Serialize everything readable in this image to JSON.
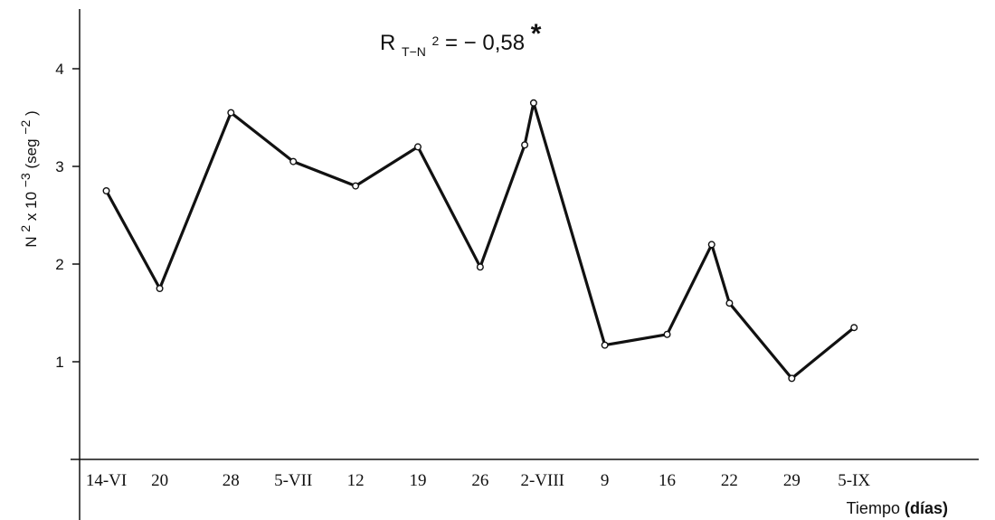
{
  "chart_data": {
    "type": "line",
    "title": "",
    "annotation": {
      "prefix": "R",
      "subscript": "T−N",
      "sup": "2",
      "value": " = − 0,58",
      "mark": "*"
    },
    "ylabel": {
      "base": "N",
      "sup1": "2",
      "mid": " x 10",
      "sup2": "−3",
      "paren_open": "(seg",
      "sup3": "−2",
      "paren_close": " )"
    },
    "xlabel": "Tiempo",
    "xlabel_unit": "(días)",
    "ylim": [
      0,
      4.5
    ],
    "yticks": [
      "1",
      "2",
      "3",
      "4"
    ],
    "ytick_values": [
      1,
      2,
      3,
      4
    ],
    "xticks": [
      "14-VI",
      "20",
      "28",
      "5-VII",
      "12",
      "19",
      "26",
      "2-VIII",
      "9",
      "16",
      "22",
      "29",
      "5-IX"
    ],
    "xtick_positions": [
      0,
      6,
      14,
      21,
      28,
      35,
      42,
      49,
      56,
      63,
      70,
      77,
      84
    ],
    "xlim": [
      -3,
      98
    ],
    "grid": false,
    "legend": "none",
    "series": [
      {
        "x": [
          0,
          6,
          14,
          21,
          28,
          35,
          42,
          47,
          48,
          56,
          63,
          68,
          70,
          77,
          84
        ],
        "y": [
          2.75,
          1.75,
          3.55,
          3.05,
          2.8,
          3.2,
          1.97,
          3.22,
          3.65,
          1.17,
          1.28,
          2.2,
          1.6,
          0.83,
          1.35
        ]
      }
    ],
    "line_color": "#111111"
  }
}
